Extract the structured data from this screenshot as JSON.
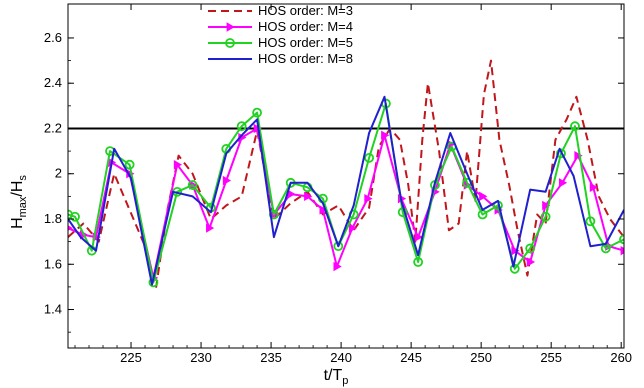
{
  "chart_data": {
    "type": "line",
    "xlabel": "t/T",
    "xlabel_sub": "p",
    "ylabel": "H",
    "ylabel_sub1": "max",
    "ylabel_mid": "/H",
    "ylabel_sub2": "s",
    "xlim": [
      220.5,
      260.2
    ],
    "ylim": [
      1.23,
      2.75
    ],
    "x_ticks": [
      225,
      230,
      235,
      240,
      245,
      250,
      255,
      260
    ],
    "y_ticks": [
      1.4,
      1.6,
      1.8,
      2,
      2.2,
      2.4,
      2.6
    ],
    "y_tick_labels": [
      "1.4",
      "1.6",
      "1.8",
      "2",
      "2.2",
      "2.4",
      "2.6"
    ],
    "reference_line": {
      "y": 2.2,
      "color": "#000000"
    },
    "legend_position": "top-center",
    "series": [
      {
        "name": "HOS order: M=3",
        "color": "#c0161c",
        "style": "dashed",
        "marker": "none",
        "x": [
          220.5,
          221.6,
          222.7,
          223.8,
          224.9,
          226.0,
          226.8,
          227.6,
          228.4,
          229.4,
          230.7,
          231.8,
          232.9,
          234.0,
          235.2,
          236.4,
          237.6,
          238.7,
          239.8,
          240.9,
          242.0,
          242.7,
          243.5,
          244.2,
          244.8,
          245.3,
          245.8,
          246.2,
          247.0,
          247.7,
          248.4,
          249.0,
          249.6,
          250.2,
          250.7,
          251.3,
          252.0,
          252.6,
          253.3,
          254.0,
          254.6,
          255.3,
          256.1,
          256.8,
          257.6,
          258.4,
          259.2,
          260.2
        ],
        "y": [
          1.72,
          1.78,
          1.7,
          2.0,
          1.84,
          1.68,
          1.5,
          1.84,
          2.08,
          2.0,
          1.8,
          1.86,
          1.9,
          2.19,
          1.8,
          1.87,
          1.92,
          1.82,
          1.86,
          1.75,
          1.85,
          2.12,
          2.2,
          2.15,
          1.95,
          1.7,
          2.15,
          2.4,
          2.1,
          1.75,
          1.78,
          2.1,
          1.88,
          2.35,
          2.5,
          2.15,
          1.95,
          1.75,
          1.55,
          1.82,
          1.78,
          2.15,
          2.24,
          2.34,
          2.15,
          1.9,
          1.8,
          1.72
        ]
      },
      {
        "name": "HOS order: M=4",
        "color": "#ff00ff",
        "style": "solid",
        "marker": "triangle",
        "x": [
          220.5,
          221.6,
          222.5,
          223.6,
          224.9,
          226.6,
          228.3,
          229.4,
          230.6,
          231.8,
          232.9,
          234.0,
          235.2,
          236.4,
          237.6,
          238.7,
          239.7,
          240.8,
          241.9,
          243.1,
          244.3,
          245.5,
          246.7,
          247.8,
          249.0,
          250.1,
          251.2,
          252.4,
          253.5,
          254.6,
          255.8,
          256.9,
          258.0,
          259.1,
          260.2
        ],
        "y": [
          1.76,
          1.73,
          1.72,
          2.05,
          2.0,
          1.54,
          2.04,
          1.95,
          1.76,
          1.97,
          2.16,
          2.2,
          1.82,
          1.91,
          1.9,
          1.84,
          1.59,
          1.76,
          1.89,
          2.17,
          1.89,
          1.72,
          1.92,
          2.13,
          1.95,
          1.9,
          1.84,
          1.66,
          1.61,
          1.86,
          1.96,
          2.08,
          1.94,
          1.68,
          1.66
        ]
      },
      {
        "name": "HOS order: M=5",
        "color": "#22d222",
        "style": "solid",
        "marker": "circle",
        "x": [
          220.5,
          221.0,
          222.2,
          223.5,
          224.9,
          226.6,
          228.3,
          229.4,
          230.7,
          231.8,
          232.9,
          234.0,
          235.2,
          236.4,
          237.6,
          238.7,
          239.8,
          240.9,
          242.0,
          243.2,
          244.4,
          245.5,
          246.7,
          247.9,
          249.0,
          250.1,
          251.2,
          252.4,
          253.5,
          254.6,
          255.7,
          256.7,
          257.8,
          258.9,
          260.2
        ],
        "y": [
          1.82,
          1.81,
          1.66,
          2.1,
          2.04,
          1.52,
          1.92,
          1.95,
          1.85,
          2.11,
          2.21,
          2.27,
          1.82,
          1.96,
          1.94,
          1.89,
          1.68,
          1.82,
          2.07,
          2.31,
          1.83,
          1.61,
          1.95,
          2.12,
          1.96,
          1.82,
          1.86,
          1.58,
          1.67,
          1.81,
          2.09,
          2.21,
          1.79,
          1.67,
          1.71
        ]
      },
      {
        "name": "HOS order: M=8",
        "color": "#2020d0",
        "style": "solid",
        "marker": "none",
        "x": [
          220.5,
          221.4,
          222.5,
          223.8,
          225.0,
          226.5,
          228.0,
          229.4,
          230.7,
          231.8,
          232.9,
          234.0,
          235.2,
          236.4,
          237.6,
          238.7,
          239.8,
          240.9,
          242.0,
          243.1,
          244.3,
          245.5,
          246.7,
          247.8,
          249.0,
          250.1,
          251.2,
          252.3,
          253.5,
          254.6,
          255.6,
          256.6,
          257.8,
          258.9,
          260.2
        ],
        "y": [
          1.8,
          1.72,
          1.66,
          2.11,
          1.98,
          1.51,
          1.92,
          1.9,
          1.83,
          2.09,
          2.17,
          2.24,
          1.72,
          1.96,
          1.96,
          1.87,
          1.68,
          1.86,
          2.18,
          2.34,
          1.88,
          1.64,
          1.96,
          2.18,
          2.0,
          1.84,
          1.88,
          1.59,
          1.93,
          1.92,
          2.11,
          1.99,
          1.68,
          1.69,
          1.84
        ]
      }
    ]
  }
}
